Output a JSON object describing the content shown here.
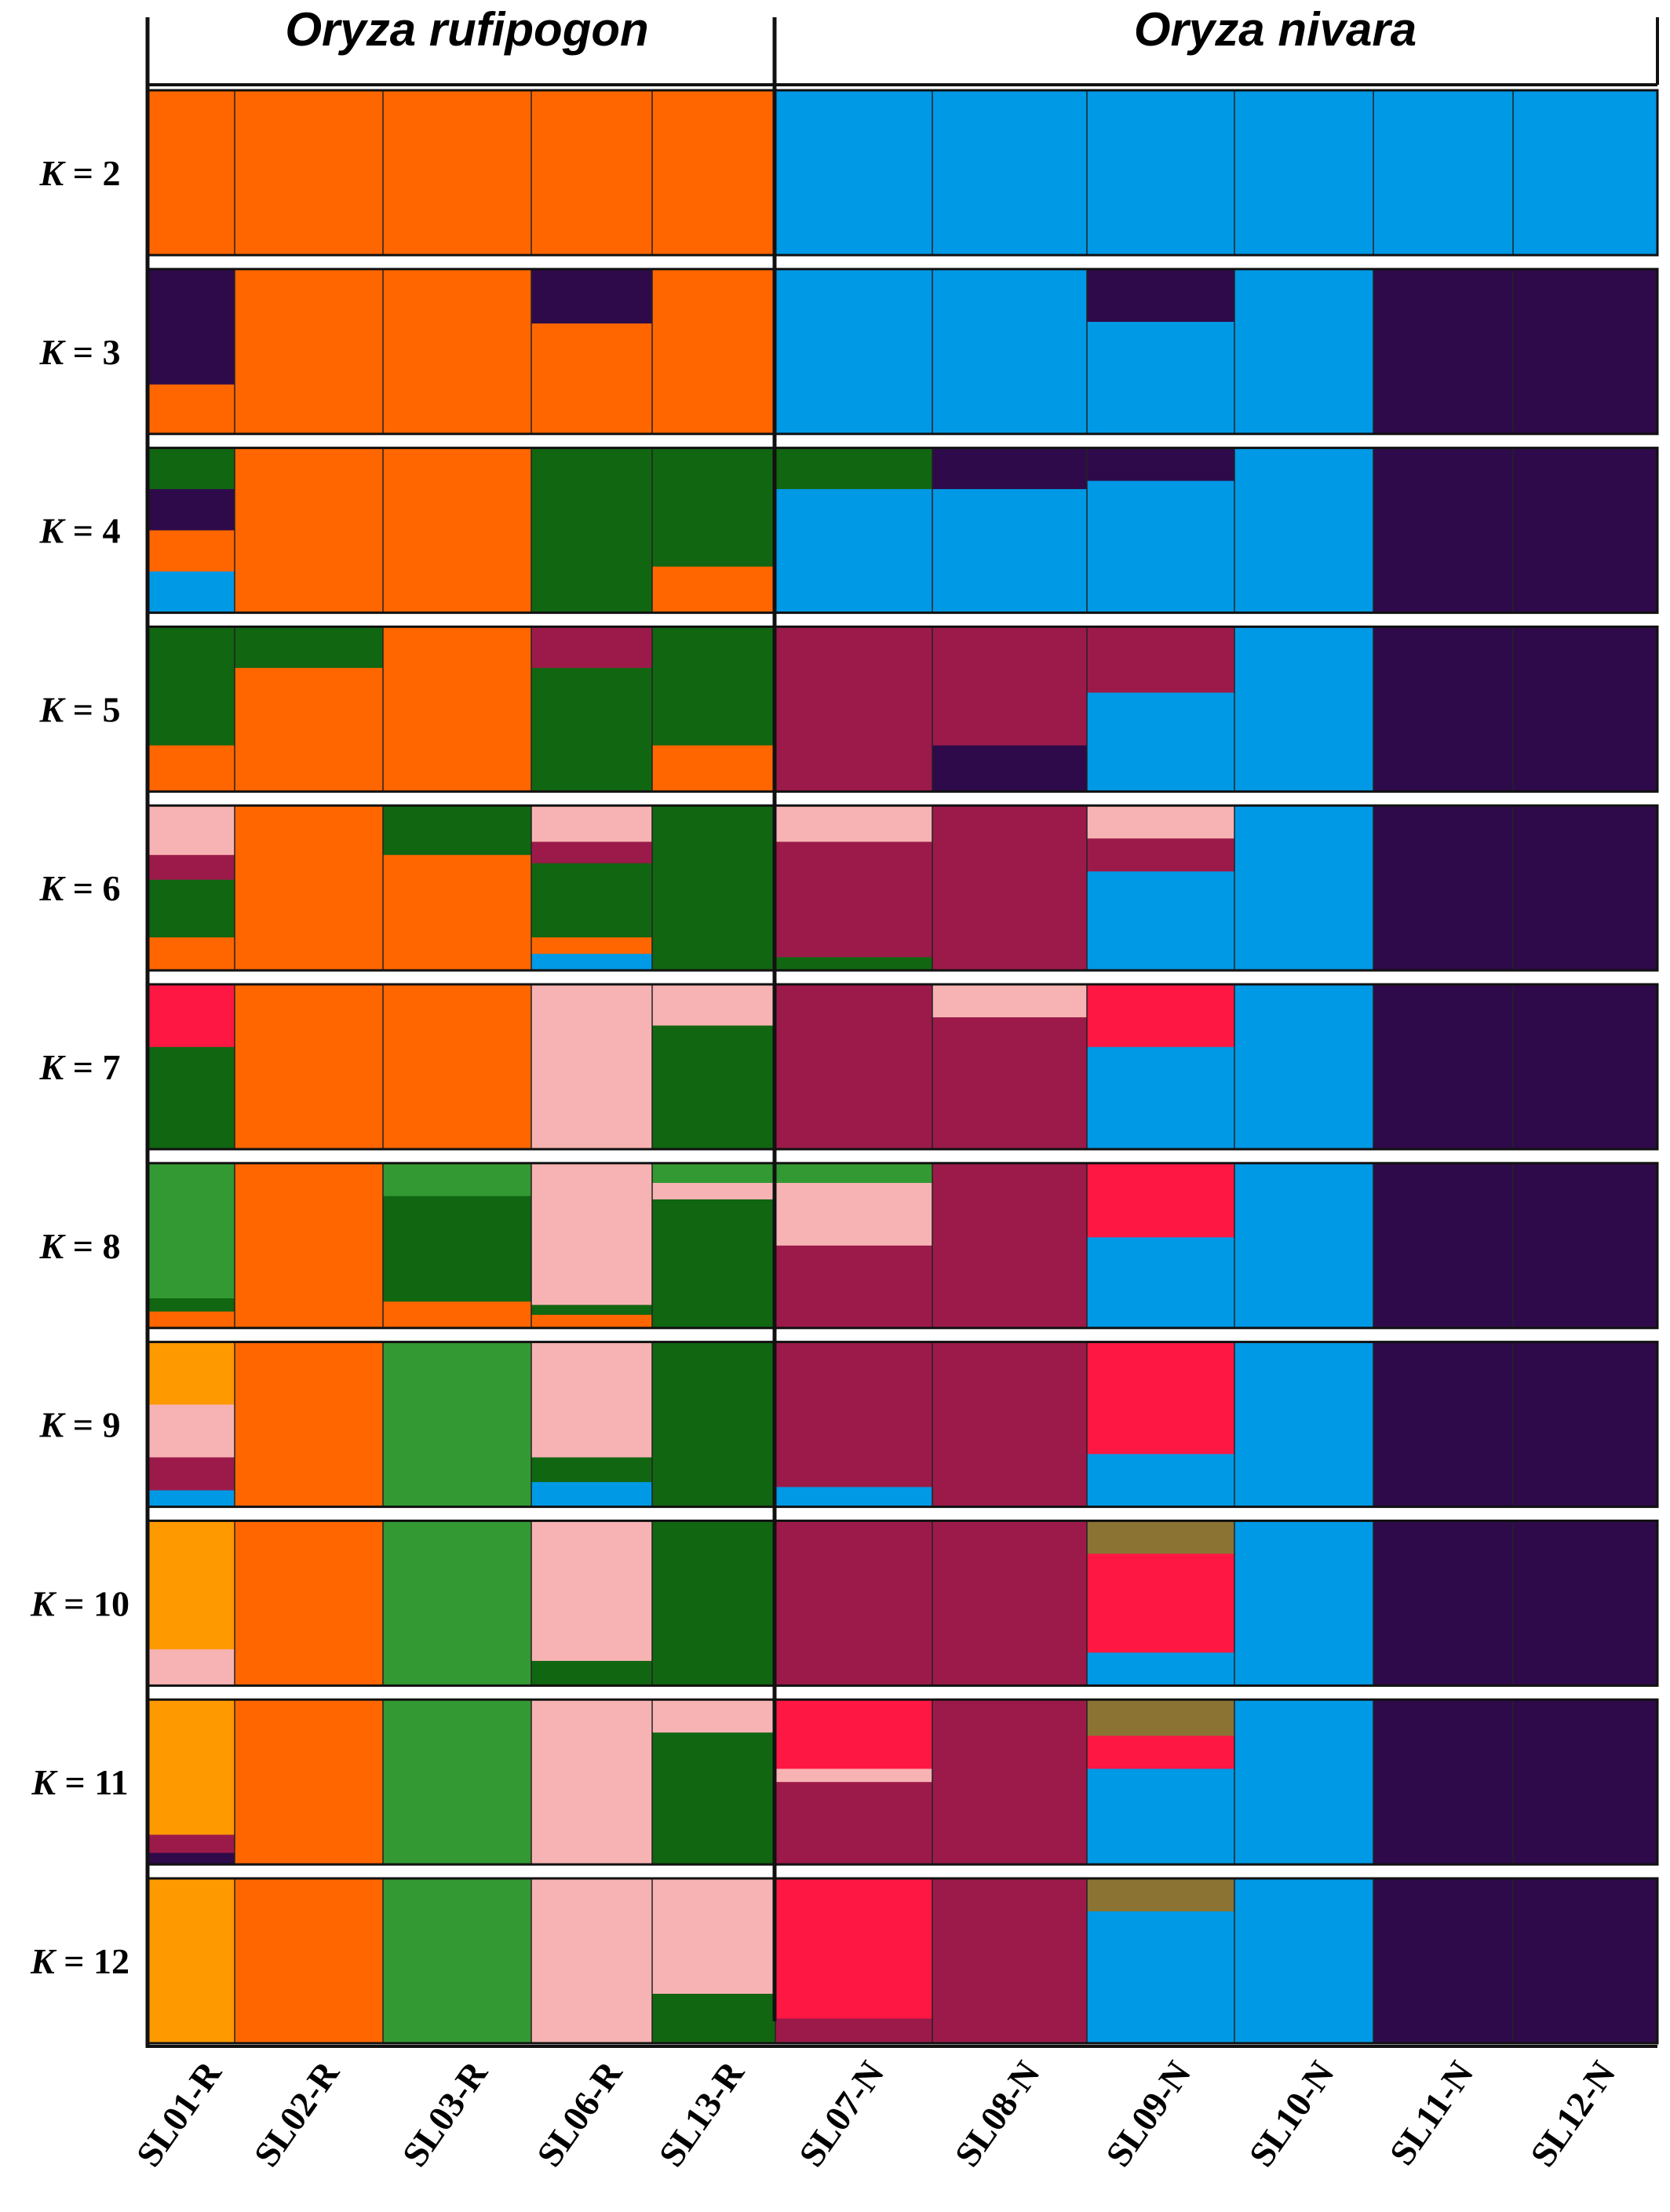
{
  "chart_data": {
    "type": "structure_barplot",
    "species": [
      "Oryza rufipogon",
      "Oryza nivara"
    ],
    "row_prefix": "K = ",
    "populations": [
      "SL01-R",
      "SL02-R",
      "SL03-R",
      "SL06-R",
      "SL13-R",
      "SL07-N",
      "SL08-N",
      "SL09-N",
      "SL10-N",
      "SL11-N",
      "SL12-N"
    ],
    "species_of_population": [
      0,
      0,
      0,
      0,
      0,
      1,
      1,
      1,
      1,
      1,
      1
    ],
    "palette": {
      "orange": "#ff6600",
      "blue": "#0099e6",
      "navy": "#2e0a4a",
      "darkgreen": "#116611",
      "maroon": "#9c1a4a",
      "pink": "#f7b3b3",
      "red": "#ff1744",
      "green": "#339933",
      "amber": "#ff9900",
      "olive": "#8a7333",
      "yellow": "#e6ff00"
    },
    "rows": [
      {
        "k": 2,
        "pops": [
          [
            [
              "orange",
              1
            ]
          ],
          [
            [
              "orange",
              1
            ]
          ],
          [
            [
              "orange",
              1
            ]
          ],
          [
            [
              "orange",
              1
            ]
          ],
          [
            [
              "orange",
              1
            ]
          ],
          [
            [
              "blue",
              1
            ]
          ],
          [
            [
              "blue",
              1
            ]
          ],
          [
            [
              "blue",
              1
            ]
          ],
          [
            [
              "blue",
              1
            ]
          ],
          [
            [
              "blue",
              1
            ]
          ],
          [
            [
              "blue",
              1
            ]
          ]
        ]
      },
      {
        "k": 3,
        "pops": [
          [
            [
              "navy",
              0.7
            ],
            [
              "orange",
              0.3
            ]
          ],
          [
            [
              "orange",
              1
            ]
          ],
          [
            [
              "orange",
              1
            ]
          ],
          [
            [
              "navy",
              0.33
            ],
            [
              "orange",
              0.67
            ]
          ],
          [
            [
              "orange",
              1
            ]
          ],
          [
            [
              "blue",
              1
            ]
          ],
          [
            [
              "blue",
              1
            ]
          ],
          [
            [
              "navy",
              0.32
            ],
            [
              "blue",
              0.68
            ]
          ],
          [
            [
              "blue",
              1
            ]
          ],
          [
            [
              "navy",
              1
            ]
          ],
          [
            [
              "navy",
              1
            ]
          ]
        ]
      },
      {
        "k": 4,
        "pops": [
          [
            [
              "darkgreen",
              0.25
            ],
            [
              "navy",
              0.25
            ],
            [
              "orange",
              0.25
            ],
            [
              "blue",
              0.25
            ]
          ],
          [
            [
              "orange",
              1
            ]
          ],
          [
            [
              "orange",
              1
            ]
          ],
          [
            [
              "darkgreen",
              1
            ]
          ],
          [
            [
              "darkgreen",
              0.72
            ],
            [
              "orange",
              0.28
            ]
          ],
          [
            [
              "darkgreen",
              0.25
            ],
            [
              "blue",
              0.75
            ]
          ],
          [
            [
              "navy",
              0.25
            ],
            [
              "blue",
              0.75
            ]
          ],
          [
            [
              "navy",
              0.2
            ],
            [
              "blue",
              0.8
            ]
          ],
          [
            [
              "blue",
              1
            ]
          ],
          [
            [
              "navy",
              1
            ]
          ],
          [
            [
              "navy",
              1
            ]
          ]
        ]
      },
      {
        "k": 5,
        "pops": [
          [
            [
              "darkgreen",
              0.72
            ],
            [
              "orange",
              0.28
            ]
          ],
          [
            [
              "darkgreen",
              0.25
            ],
            [
              "orange",
              0.75
            ]
          ],
          [
            [
              "orange",
              1
            ]
          ],
          [
            [
              "maroon",
              0.25
            ],
            [
              "darkgreen",
              0.75
            ]
          ],
          [
            [
              "darkgreen",
              0.72
            ],
            [
              "orange",
              0.28
            ]
          ],
          [
            [
              "maroon",
              1
            ]
          ],
          [
            [
              "maroon",
              0.72
            ],
            [
              "navy",
              0.28
            ]
          ],
          [
            [
              "maroon",
              0.4
            ],
            [
              "blue",
              0.6
            ]
          ],
          [
            [
              "blue",
              1
            ]
          ],
          [
            [
              "navy",
              1
            ]
          ],
          [
            [
              "navy",
              1
            ]
          ]
        ]
      },
      {
        "k": 6,
        "pops": [
          [
            [
              "pink",
              0.3
            ],
            [
              "maroon",
              0.15
            ],
            [
              "darkgreen",
              0.35
            ],
            [
              "orange",
              0.2
            ]
          ],
          [
            [
              "orange",
              1
            ]
          ],
          [
            [
              "darkgreen",
              0.3
            ],
            [
              "orange",
              0.7
            ]
          ],
          [
            [
              "pink",
              0.22
            ],
            [
              "maroon",
              0.13
            ],
            [
              "darkgreen",
              0.45
            ],
            [
              "orange",
              0.1
            ],
            [
              "blue",
              0.1
            ]
          ],
          [
            [
              "darkgreen",
              1
            ]
          ],
          [
            [
              "pink",
              0.22
            ],
            [
              "maroon",
              0.7
            ],
            [
              "darkgreen",
              0.08
            ]
          ],
          [
            [
              "maroon",
              1
            ]
          ],
          [
            [
              "pink",
              0.2
            ],
            [
              "maroon",
              0.2
            ],
            [
              "blue",
              0.6
            ]
          ],
          [
            [
              "blue",
              1
            ]
          ],
          [
            [
              "navy",
              1
            ]
          ],
          [
            [
              "navy",
              1
            ]
          ]
        ]
      },
      {
        "k": 7,
        "pops": [
          [
            [
              "red",
              0.38
            ],
            [
              "darkgreen",
              0.62
            ]
          ],
          [
            [
              "orange",
              1
            ]
          ],
          [
            [
              "orange",
              1
            ]
          ],
          [
            [
              "pink",
              1
            ]
          ],
          [
            [
              "pink",
              0.25
            ],
            [
              "darkgreen",
              0.75
            ]
          ],
          [
            [
              "maroon",
              1
            ]
          ],
          [
            [
              "pink",
              0.2
            ],
            [
              "maroon",
              0.8
            ]
          ],
          [
            [
              "red",
              0.38
            ],
            [
              "blue",
              0.62
            ]
          ],
          [
            [
              "blue",
              1
            ]
          ],
          [
            [
              "navy",
              1
            ]
          ],
          [
            [
              "navy",
              1
            ]
          ]
        ]
      },
      {
        "k": 8,
        "pops": [
          [
            [
              "green",
              0.82
            ],
            [
              "darkgreen",
              0.08
            ],
            [
              "orange",
              0.1
            ]
          ],
          [
            [
              "orange",
              1
            ]
          ],
          [
            [
              "green",
              0.2
            ],
            [
              "darkgreen",
              0.64
            ],
            [
              "orange",
              0.16
            ]
          ],
          [
            [
              "pink",
              0.86
            ],
            [
              "darkgreen",
              0.06
            ],
            [
              "orange",
              0.08
            ]
          ],
          [
            [
              "green",
              0.12
            ],
            [
              "pink",
              0.1
            ],
            [
              "darkgreen",
              0.78
            ]
          ],
          [
            [
              "green",
              0.12
            ],
            [
              "pink",
              0.38
            ],
            [
              "maroon",
              0.5
            ]
          ],
          [
            [
              "maroon",
              1
            ]
          ],
          [
            [
              "red",
              0.45
            ],
            [
              "blue",
              0.55
            ]
          ],
          [
            [
              "blue",
              1
            ]
          ],
          [
            [
              "navy",
              1
            ]
          ],
          [
            [
              "navy",
              1
            ]
          ]
        ]
      },
      {
        "k": 9,
        "pops": [
          [
            [
              "amber",
              0.38
            ],
            [
              "pink",
              0.32
            ],
            [
              "maroon",
              0.2
            ],
            [
              "blue",
              0.1
            ]
          ],
          [
            [
              "orange",
              1
            ]
          ],
          [
            [
              "green",
              1
            ]
          ],
          [
            [
              "pink",
              0.7
            ],
            [
              "darkgreen",
              0.15
            ],
            [
              "blue",
              0.15
            ]
          ],
          [
            [
              "darkgreen",
              1
            ]
          ],
          [
            [
              "maroon",
              0.88
            ],
            [
              "blue",
              0.12
            ]
          ],
          [
            [
              "maroon",
              1
            ]
          ],
          [
            [
              "red",
              0.68
            ],
            [
              "blue",
              0.32
            ]
          ],
          [
            [
              "blue",
              1
            ]
          ],
          [
            [
              "navy",
              1
            ]
          ],
          [
            [
              "navy",
              1
            ]
          ]
        ]
      },
      {
        "k": 10,
        "pops": [
          [
            [
              "amber",
              0.78
            ],
            [
              "pink",
              0.22
            ]
          ],
          [
            [
              "orange",
              1
            ]
          ],
          [
            [
              "green",
              1
            ]
          ],
          [
            [
              "pink",
              0.85
            ],
            [
              "darkgreen",
              0.15
            ]
          ],
          [
            [
              "darkgreen",
              1
            ]
          ],
          [
            [
              "maroon",
              1
            ]
          ],
          [
            [
              "maroon",
              1
            ]
          ],
          [
            [
              "olive",
              0.2
            ],
            [
              "red",
              0.6
            ],
            [
              "blue",
              0.2
            ]
          ],
          [
            [
              "blue",
              1
            ]
          ],
          [
            [
              "navy",
              1
            ]
          ],
          [
            [
              "navy",
              1
            ]
          ]
        ]
      },
      {
        "k": 11,
        "pops": [
          [
            [
              "amber",
              0.82
            ],
            [
              "maroon",
              0.11
            ],
            [
              "navy",
              0.07
            ]
          ],
          [
            [
              "orange",
              1
            ]
          ],
          [
            [
              "green",
              1
            ]
          ],
          [
            [
              "pink",
              1
            ]
          ],
          [
            [
              "pink",
              0.2
            ],
            [
              "darkgreen",
              0.8
            ]
          ],
          [
            [
              "red",
              0.42
            ],
            [
              "pink",
              0.08
            ],
            [
              "maroon",
              0.5
            ]
          ],
          [
            [
              "maroon",
              1
            ]
          ],
          [
            [
              "olive",
              0.22
            ],
            [
              "red",
              0.2
            ],
            [
              "blue",
              0.58
            ]
          ],
          [
            [
              "blue",
              1
            ]
          ],
          [
            [
              "navy",
              1
            ]
          ],
          [
            [
              "navy",
              1
            ]
          ]
        ]
      },
      {
        "k": 12,
        "pops": [
          [
            [
              "amber",
              1
            ]
          ],
          [
            [
              "orange",
              1
            ]
          ],
          [
            [
              "green",
              1
            ]
          ],
          [
            [
              "pink",
              1
            ]
          ],
          [
            [
              "pink",
              0.7
            ],
            [
              "darkgreen",
              0.3
            ]
          ],
          [
            [
              "red",
              0.85
            ],
            [
              "maroon",
              0.15
            ]
          ],
          [
            [
              "maroon",
              1
            ]
          ],
          [
            [
              "olive",
              0.2
            ],
            [
              "blue",
              0.8
            ]
          ],
          [
            [
              "blue",
              1
            ]
          ],
          [
            [
              "navy",
              1
            ]
          ],
          [
            [
              "navy",
              1
            ]
          ]
        ]
      }
    ]
  }
}
